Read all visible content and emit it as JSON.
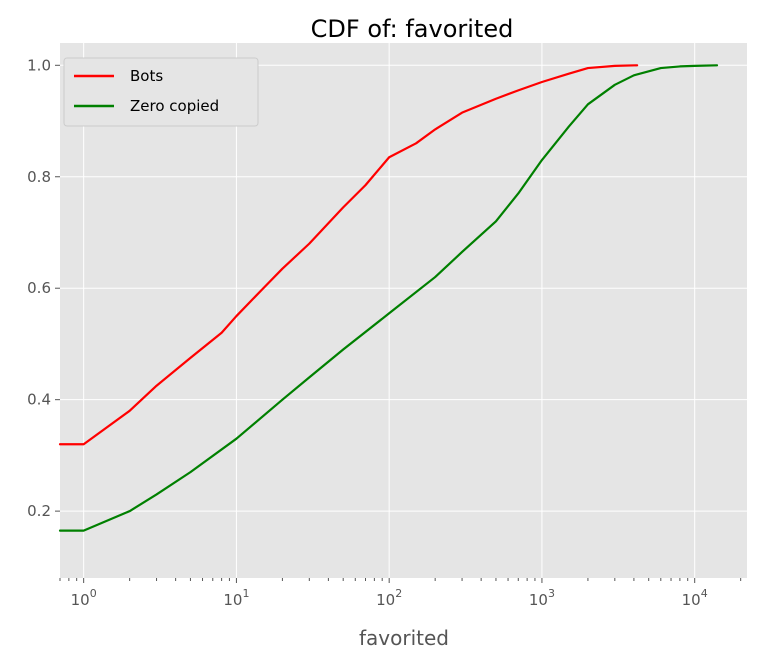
{
  "chart_data": {
    "type": "line",
    "title": "CDF of: favorited",
    "xlabel": "favorited",
    "ylabel": "",
    "xscale": "log",
    "xlim": [
      0.7,
      22000
    ],
    "ylim": [
      0.08,
      1.04
    ],
    "grid": true,
    "legend_position": "top-left",
    "xticks": [
      {
        "value": 1,
        "base": "10",
        "exp": "0"
      },
      {
        "value": 10,
        "base": "10",
        "exp": "1"
      },
      {
        "value": 100,
        "base": "10",
        "exp": "2"
      },
      {
        "value": 1000,
        "base": "10",
        "exp": "3"
      },
      {
        "value": 10000,
        "base": "10",
        "exp": "4"
      }
    ],
    "yticks": [
      "0.2",
      "0.4",
      "0.6",
      "0.8",
      "1.0"
    ],
    "series": [
      {
        "name": "Bots",
        "color": "#ff0000",
        "x": [
          0.7,
          1,
          2,
          3,
          5,
          8,
          10,
          15,
          20,
          30,
          50,
          70,
          100,
          150,
          200,
          300,
          500,
          700,
          1000,
          1500,
          2000,
          3000,
          4200
        ],
        "y": [
          0.32,
          0.32,
          0.38,
          0.425,
          0.475,
          0.52,
          0.55,
          0.6,
          0.635,
          0.68,
          0.745,
          0.785,
          0.835,
          0.86,
          0.885,
          0.915,
          0.94,
          0.955,
          0.97,
          0.985,
          0.995,
          0.999,
          1.0
        ]
      },
      {
        "name": "Zero copied",
        "color": "#008000",
        "x": [
          0.7,
          1,
          2,
          3,
          5,
          10,
          20,
          30,
          50,
          100,
          200,
          300,
          500,
          700,
          1000,
          1500,
          2000,
          3000,
          4000,
          6000,
          8000,
          10000,
          14000
        ],
        "y": [
          0.165,
          0.165,
          0.2,
          0.23,
          0.27,
          0.33,
          0.4,
          0.44,
          0.49,
          0.555,
          0.62,
          0.665,
          0.72,
          0.77,
          0.83,
          0.89,
          0.93,
          0.965,
          0.982,
          0.995,
          0.998,
          0.999,
          1.0
        ]
      }
    ]
  }
}
